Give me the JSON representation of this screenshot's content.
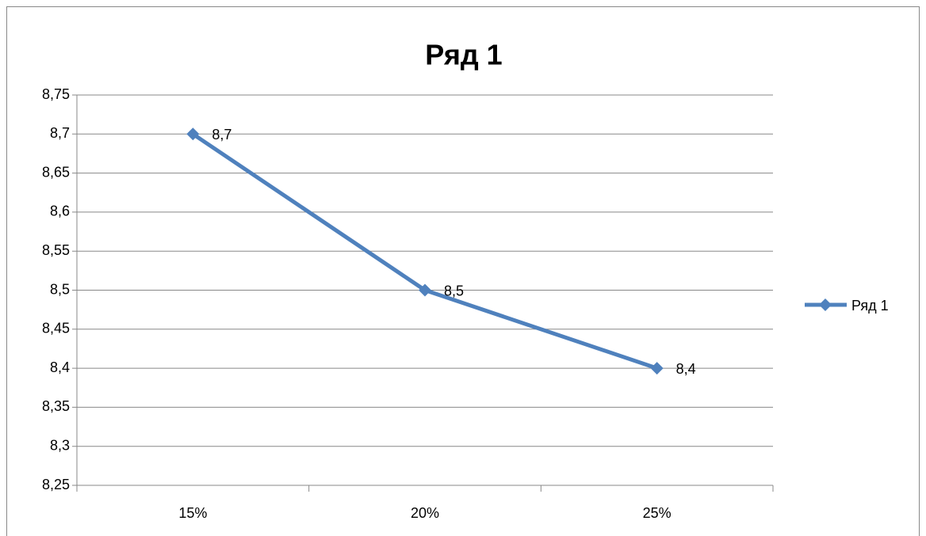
{
  "chart_data": {
    "type": "line",
    "title": "Ряд 1",
    "categories": [
      "15%",
      "20%",
      "25%"
    ],
    "series": [
      {
        "name": "Ряд 1",
        "color": "#4f81bd",
        "values": [
          8.7,
          8.5,
          8.4
        ],
        "value_labels": [
          "8,7",
          "8,5",
          "8,4"
        ]
      }
    ],
    "ylim": [
      8.25,
      8.75
    ],
    "yticks": [
      {
        "value": 8.25,
        "label": "8,25"
      },
      {
        "value": 8.3,
        "label": "8,3"
      },
      {
        "value": 8.35,
        "label": "8,35"
      },
      {
        "value": 8.4,
        "label": "8,4"
      },
      {
        "value": 8.45,
        "label": "8,45"
      },
      {
        "value": 8.5,
        "label": "8,5"
      },
      {
        "value": 8.55,
        "label": "8,55"
      },
      {
        "value": 8.6,
        "label": "8,6"
      },
      {
        "value": 8.65,
        "label": "8,65"
      },
      {
        "value": 8.7,
        "label": "8,7"
      },
      {
        "value": 8.75,
        "label": "8,75"
      }
    ],
    "grid": true,
    "legend": "right"
  }
}
